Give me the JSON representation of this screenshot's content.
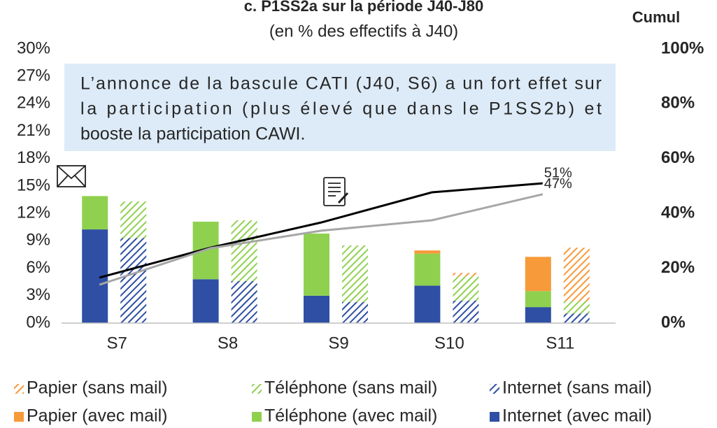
{
  "chart_data": {
    "type": "bar",
    "title": "c. P1SS2a sur la période J40-J80",
    "subtitle": "(en % des effectifs à J40)",
    "y2_label": "Cumul",
    "annotation": [
      "L’annonce de la bascule CATI (J40, S6) a un fort effet sur",
      "la participation (plus élevé que dans le P1SS2b) et",
      "booste la participation CAWI."
    ],
    "categories": [
      "S7",
      "S8",
      "S9",
      "S10",
      "S11"
    ],
    "series": [
      {
        "name": "Papier (sans mail)",
        "color": "#f79a3a",
        "pattern": "hatched",
        "values": [
          0,
          0,
          0,
          0.4,
          5.85
        ]
      },
      {
        "name": "Téléphone (sans mail)",
        "color": "#8fd14f",
        "pattern": "hatched",
        "values": [
          4.0,
          6.65,
          6.2,
          2.65,
          1.35
        ]
      },
      {
        "name": "Internet (sans mail)",
        "color": "#2e4fa3",
        "pattern": "hatched",
        "values": [
          9.3,
          4.6,
          2.3,
          2.45,
          1.05
        ]
      },
      {
        "name": "Papier (avec mail)",
        "color": "#f79a3a",
        "pattern": "solid",
        "values": [
          0,
          0,
          0,
          0.35,
          3.75
        ]
      },
      {
        "name": "Téléphone (avec mail)",
        "color": "#8fd14f",
        "pattern": "solid",
        "values": [
          3.65,
          6.3,
          6.8,
          3.5,
          1.75
        ]
      },
      {
        "name": "Internet (avec mail)",
        "color": "#2e4fa3",
        "pattern": "solid",
        "values": [
          10.25,
          4.8,
          3.0,
          4.1,
          1.75
        ]
      }
    ],
    "lines": [
      {
        "color": "#000000",
        "axis": "y2",
        "values": [
          16.6,
          27.5,
          36.7,
          47.7,
          51
        ],
        "value_labels": [
          null,
          null,
          null,
          null,
          "51%"
        ]
      },
      {
        "color": "#a6a6a6",
        "axis": "y2",
        "values": [
          14,
          27.3,
          33.7,
          37.5,
          47
        ],
        "value_labels": [
          null,
          null,
          null,
          null,
          "47%"
        ]
      }
    ],
    "ylim": [
      0,
      30
    ],
    "yticks": [
      {
        "value": 0,
        "label": "0%"
      },
      {
        "value": 3,
        "label": "3%"
      },
      {
        "value": 6,
        "label": "6%"
      },
      {
        "value": 9,
        "label": "9%"
      },
      {
        "value": 12,
        "label": "12%"
      },
      {
        "value": 15,
        "label": "15%"
      },
      {
        "value": 18,
        "label": "18%"
      },
      {
        "value": 21,
        "label": "21%"
      },
      {
        "value": 24,
        "label": "24%"
      },
      {
        "value": 27,
        "label": "27%"
      },
      {
        "value": 30,
        "label": "30%"
      }
    ],
    "y2lim": [
      0,
      100
    ],
    "y2ticks": [
      {
        "value": 0,
        "label": "0%"
      },
      {
        "value": 20,
        "label": "20%"
      },
      {
        "value": 40,
        "label": "40%"
      },
      {
        "value": 60,
        "label": "60%"
      },
      {
        "value": 80,
        "label": "80%"
      },
      {
        "value": 100,
        "label": "100%"
      }
    ]
  }
}
